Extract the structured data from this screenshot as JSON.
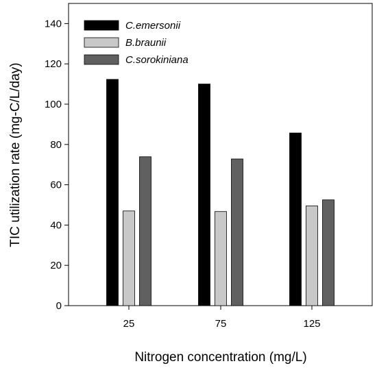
{
  "chart_data": {
    "type": "bar",
    "title": "",
    "xlabel": "Nitrogen concentration (mg/L)",
    "ylabel": "TIC utilization rate (mg-C/L/day)",
    "categories": [
      "25",
      "75",
      "125"
    ],
    "ylim": [
      0,
      150
    ],
    "yticks": [
      "0",
      "20",
      "40",
      "60",
      "80",
      "100",
      "120",
      "140"
    ],
    "grid": false,
    "legend_position": "top-left",
    "series": [
      {
        "name": "C.emersonii",
        "color": "#000000",
        "values": [
          112.3,
          110.0,
          85.7
        ]
      },
      {
        "name": "B.braunii",
        "color": "#c8c8c8",
        "values": [
          47.0,
          46.7,
          49.5
        ]
      },
      {
        "name": "C.sorokiniana",
        "color": "#606060",
        "values": [
          73.9,
          72.8,
          52.5
        ]
      }
    ]
  }
}
